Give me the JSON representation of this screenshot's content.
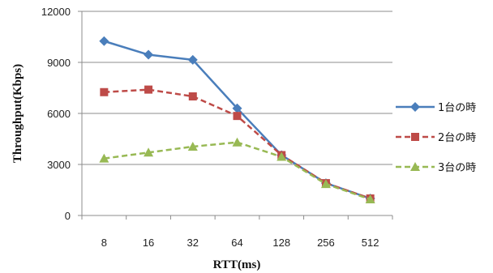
{
  "chart_data": {
    "type": "line",
    "title": "",
    "xlabel": "RTT(ms)",
    "ylabel": "Throughput(Kbps)",
    "categories": [
      "8",
      "16",
      "32",
      "64",
      "128",
      "256",
      "512"
    ],
    "ylim": [
      0,
      12000
    ],
    "yticks": [
      "0",
      "3000",
      "6000",
      "9000",
      "12000"
    ],
    "grid": true,
    "legend_position": "right",
    "series": [
      {
        "name": "1台の時",
        "values": [
          10250,
          9450,
          9150,
          6300,
          3550,
          1900,
          1000
        ],
        "color": "#4a7ebb",
        "marker": "diamond",
        "dash": "solid"
      },
      {
        "name": "2台の時",
        "values": [
          7250,
          7400,
          7000,
          5850,
          3550,
          1900,
          1000
        ],
        "color": "#be4b48",
        "marker": "square",
        "dash": "dashed"
      },
      {
        "name": "3台の時",
        "values": [
          3350,
          3700,
          4050,
          4300,
          3450,
          1850,
          950
        ],
        "color": "#98b954",
        "marker": "triangle",
        "dash": "dashed"
      }
    ]
  }
}
